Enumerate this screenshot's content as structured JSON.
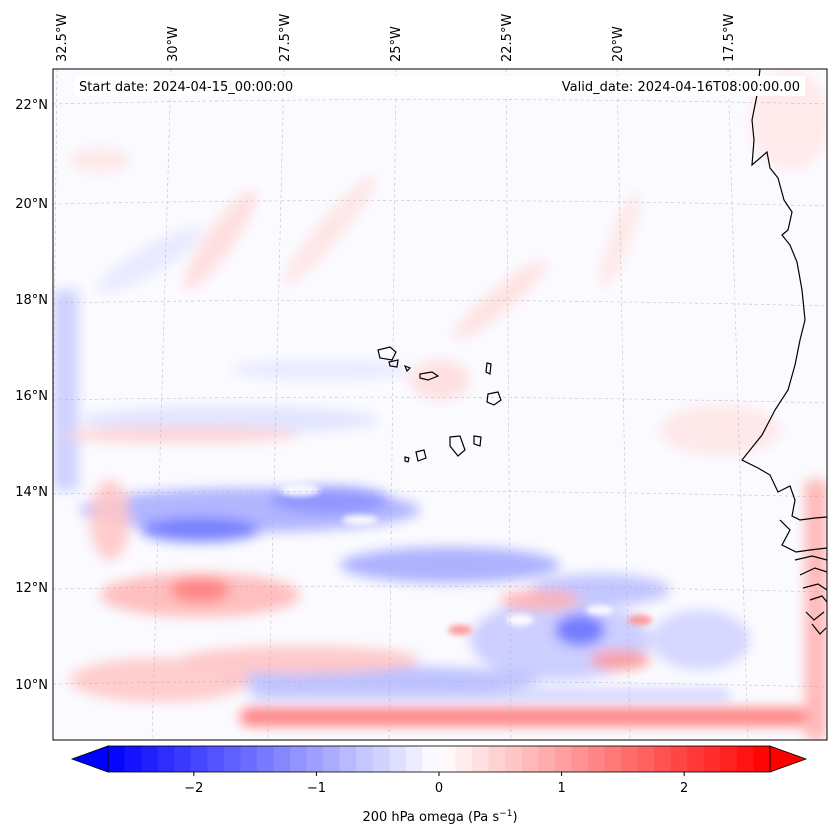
{
  "map": {
    "start_date": "Start date: 2024-04-15_00:00:00",
    "valid_date": "Valid_date: 2024-04-16T08:00:00.00",
    "lon_labels": [
      "32.5°W",
      "30°W",
      "27.5°W",
      "25°W",
      "22.5°W",
      "20°W",
      "17.5°W"
    ],
    "lat_labels": [
      "22°N",
      "20°N",
      "18°N",
      "16°N",
      "14°N",
      "12°N",
      "10°N"
    ]
  },
  "colorbar": {
    "label_main": "200 hPa omega (Pa s",
    "label_sup": "−1",
    "label_end": ")",
    "ticks": [
      "−2",
      "−1",
      "0",
      "1",
      "2"
    ],
    "vmin": -2.7,
    "vmax": 2.7,
    "tick_values": [
      -2,
      -1,
      0,
      1,
      2
    ]
  },
  "colors": {
    "negative": "#0000ff",
    "neutral": "#ffffff",
    "positive": "#ff0000"
  }
}
